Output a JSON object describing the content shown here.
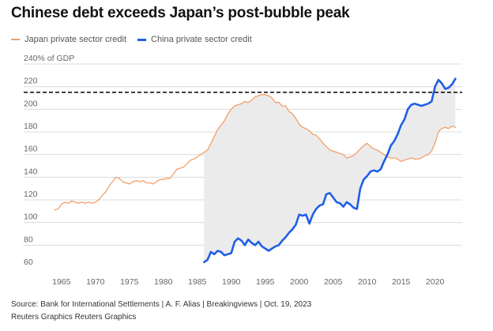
{
  "title": "Chinese debt exceeds Japan’s post-bubble peak",
  "source": "Source: Bank for International Settlements | A. F. Alias | Breakingviews | Oct. 19, 2023",
  "credit": "Reuters Graphics Reuters Graphics",
  "colors": {
    "japan": "#f2a06a",
    "china": "#1f5fe6",
    "fill": "#ebebeb",
    "reference": "#000000"
  },
  "chart_data": {
    "type": "line",
    "title": "Chinese debt exceeds Japan’s post-bubble peak",
    "ylabel": "240% of GDP",
    "xlim": [
      1962,
      2024
    ],
    "ylim": [
      60,
      240
    ],
    "x_ticks": [
      1965,
      1970,
      1975,
      1980,
      1985,
      1990,
      1995,
      2000,
      2005,
      2010,
      2015,
      2020
    ],
    "y_ticks": [
      60,
      80,
      100,
      120,
      140,
      160,
      180,
      200,
      220,
      240
    ],
    "y_tick_labels": [
      "60",
      "80",
      "100",
      "120",
      "140",
      "160",
      "180",
      "200",
      "220",
      "240% of GDP"
    ],
    "grid": true,
    "legend_position": "top-left",
    "reference_line": 215,
    "shaded_range": [
      1986,
      2023
    ],
    "series": [
      {
        "name": "Japan private sector credit",
        "color": "#f2a06a",
        "points": [
          [
            1964.0,
            111
          ],
          [
            1964.5,
            112
          ],
          [
            1965.0,
            116
          ],
          [
            1965.5,
            118
          ],
          [
            1966.0,
            117
          ],
          [
            1966.5,
            119
          ],
          [
            1967.0,
            118
          ],
          [
            1967.5,
            117
          ],
          [
            1968.0,
            118
          ],
          [
            1968.5,
            117
          ],
          [
            1969.0,
            118
          ],
          [
            1969.5,
            117
          ],
          [
            1970.0,
            118
          ],
          [
            1970.5,
            120
          ],
          [
            1971.0,
            124
          ],
          [
            1971.5,
            127
          ],
          [
            1972.0,
            132
          ],
          [
            1972.5,
            136
          ],
          [
            1973.0,
            140
          ],
          [
            1973.5,
            139
          ],
          [
            1974.0,
            136
          ],
          [
            1974.5,
            135
          ],
          [
            1975.0,
            134
          ],
          [
            1975.5,
            136
          ],
          [
            1976.0,
            137
          ],
          [
            1976.5,
            136
          ],
          [
            1977.0,
            137
          ],
          [
            1977.5,
            135
          ],
          [
            1978.0,
            135
          ],
          [
            1978.5,
            134
          ],
          [
            1979.0,
            136
          ],
          [
            1979.5,
            138
          ],
          [
            1980.0,
            138
          ],
          [
            1980.5,
            139
          ],
          [
            1981.0,
            139
          ],
          [
            1981.5,
            143
          ],
          [
            1982.0,
            147
          ],
          [
            1982.5,
            148
          ],
          [
            1983.0,
            149
          ],
          [
            1983.5,
            152
          ],
          [
            1984.0,
            155
          ],
          [
            1984.5,
            156
          ],
          [
            1985.0,
            158
          ],
          [
            1985.5,
            160
          ],
          [
            1986.0,
            162
          ],
          [
            1986.5,
            164
          ],
          [
            1987.0,
            170
          ],
          [
            1987.5,
            176
          ],
          [
            1988.0,
            182
          ],
          [
            1988.5,
            186
          ],
          [
            1989.0,
            190
          ],
          [
            1989.5,
            196
          ],
          [
            1990.0,
            200
          ],
          [
            1990.5,
            203
          ],
          [
            1991.0,
            204
          ],
          [
            1991.5,
            205
          ],
          [
            1992.0,
            207
          ],
          [
            1992.5,
            206
          ],
          [
            1993.0,
            208
          ],
          [
            1993.5,
            211
          ],
          [
            1994.0,
            212
          ],
          [
            1994.5,
            213
          ],
          [
            1995.0,
            213
          ],
          [
            1995.5,
            212
          ],
          [
            1996.0,
            210
          ],
          [
            1996.5,
            206
          ],
          [
            1997.0,
            206
          ],
          [
            1997.5,
            203
          ],
          [
            1998.0,
            203
          ],
          [
            1998.5,
            198
          ],
          [
            1999.0,
            196
          ],
          [
            1999.5,
            192
          ],
          [
            2000.0,
            187
          ],
          [
            2000.5,
            184
          ],
          [
            2001.0,
            183
          ],
          [
            2001.5,
            181
          ],
          [
            2002.0,
            178
          ],
          [
            2002.5,
            177
          ],
          [
            2003.0,
            174
          ],
          [
            2003.5,
            170
          ],
          [
            2004.0,
            167
          ],
          [
            2004.5,
            164
          ],
          [
            2005.0,
            163
          ],
          [
            2005.5,
            162
          ],
          [
            2006.0,
            161
          ],
          [
            2006.5,
            160
          ],
          [
            2007.0,
            157
          ],
          [
            2007.5,
            158
          ],
          [
            2008.0,
            159
          ],
          [
            2008.5,
            162
          ],
          [
            2009.0,
            165
          ],
          [
            2009.5,
            168
          ],
          [
            2010.0,
            170
          ],
          [
            2010.5,
            167
          ],
          [
            2011.0,
            165
          ],
          [
            2011.5,
            164
          ],
          [
            2012.0,
            162
          ],
          [
            2012.5,
            160
          ],
          [
            2013.0,
            158
          ],
          [
            2013.5,
            157
          ],
          [
            2014.0,
            157
          ],
          [
            2014.5,
            156
          ],
          [
            2015.0,
            154
          ],
          [
            2015.5,
            155
          ],
          [
            2016.0,
            156
          ],
          [
            2016.5,
            157
          ],
          [
            2017.0,
            156
          ],
          [
            2017.5,
            156
          ],
          [
            2018.0,
            157
          ],
          [
            2018.5,
            159
          ],
          [
            2019.0,
            160
          ],
          [
            2019.5,
            163
          ],
          [
            2020.0,
            170
          ],
          [
            2020.5,
            180
          ],
          [
            2021.0,
            183
          ],
          [
            2021.5,
            184
          ],
          [
            2022.0,
            183
          ],
          [
            2022.5,
            185
          ],
          [
            2023.0,
            184
          ]
        ]
      },
      {
        "name": "China private sector credit",
        "color": "#1f5fe6",
        "points": [
          [
            1986.0,
            65
          ],
          [
            1986.5,
            67
          ],
          [
            1987.0,
            74
          ],
          [
            1987.5,
            72
          ],
          [
            1988.0,
            75
          ],
          [
            1988.5,
            74
          ],
          [
            1989.0,
            71
          ],
          [
            1989.5,
            72
          ],
          [
            1990.0,
            73
          ],
          [
            1990.5,
            83
          ],
          [
            1991.0,
            86
          ],
          [
            1991.5,
            84
          ],
          [
            1992.0,
            80
          ],
          [
            1992.5,
            85
          ],
          [
            1993.0,
            82
          ],
          [
            1993.5,
            80
          ],
          [
            1994.0,
            83
          ],
          [
            1994.5,
            79
          ],
          [
            1995.0,
            77
          ],
          [
            1995.5,
            75
          ],
          [
            1996.0,
            77
          ],
          [
            1996.5,
            79
          ],
          [
            1997.0,
            80
          ],
          [
            1997.5,
            84
          ],
          [
            1998.0,
            87
          ],
          [
            1998.5,
            91
          ],
          [
            1999.0,
            94
          ],
          [
            1999.5,
            98
          ],
          [
            2000.0,
            107
          ],
          [
            2000.5,
            106
          ],
          [
            2001.0,
            107
          ],
          [
            2001.5,
            99
          ],
          [
            2002.0,
            107
          ],
          [
            2002.5,
            112
          ],
          [
            2003.0,
            115
          ],
          [
            2003.5,
            116
          ],
          [
            2004.0,
            125
          ],
          [
            2004.5,
            126
          ],
          [
            2005.0,
            122
          ],
          [
            2005.5,
            118
          ],
          [
            2006.0,
            117
          ],
          [
            2006.5,
            114
          ],
          [
            2007.0,
            118
          ],
          [
            2007.5,
            116
          ],
          [
            2008.0,
            113
          ],
          [
            2008.5,
            112
          ],
          [
            2009.0,
            130
          ],
          [
            2009.5,
            138
          ],
          [
            2010.0,
            141
          ],
          [
            2010.5,
            145
          ],
          [
            2011.0,
            146
          ],
          [
            2011.5,
            145
          ],
          [
            2012.0,
            147
          ],
          [
            2012.5,
            154
          ],
          [
            2013.0,
            160
          ],
          [
            2013.5,
            168
          ],
          [
            2014.0,
            172
          ],
          [
            2014.5,
            178
          ],
          [
            2015.0,
            186
          ],
          [
            2015.5,
            191
          ],
          [
            2016.0,
            200
          ],
          [
            2016.5,
            204
          ],
          [
            2017.0,
            205
          ],
          [
            2017.5,
            204
          ],
          [
            2018.0,
            203
          ],
          [
            2018.5,
            204
          ],
          [
            2019.0,
            205
          ],
          [
            2019.5,
            207
          ],
          [
            2020.0,
            220
          ],
          [
            2020.5,
            226
          ],
          [
            2021.0,
            223
          ],
          [
            2021.5,
            218
          ],
          [
            2022.0,
            219
          ],
          [
            2022.5,
            222
          ],
          [
            2023.0,
            227
          ]
        ]
      }
    ]
  }
}
